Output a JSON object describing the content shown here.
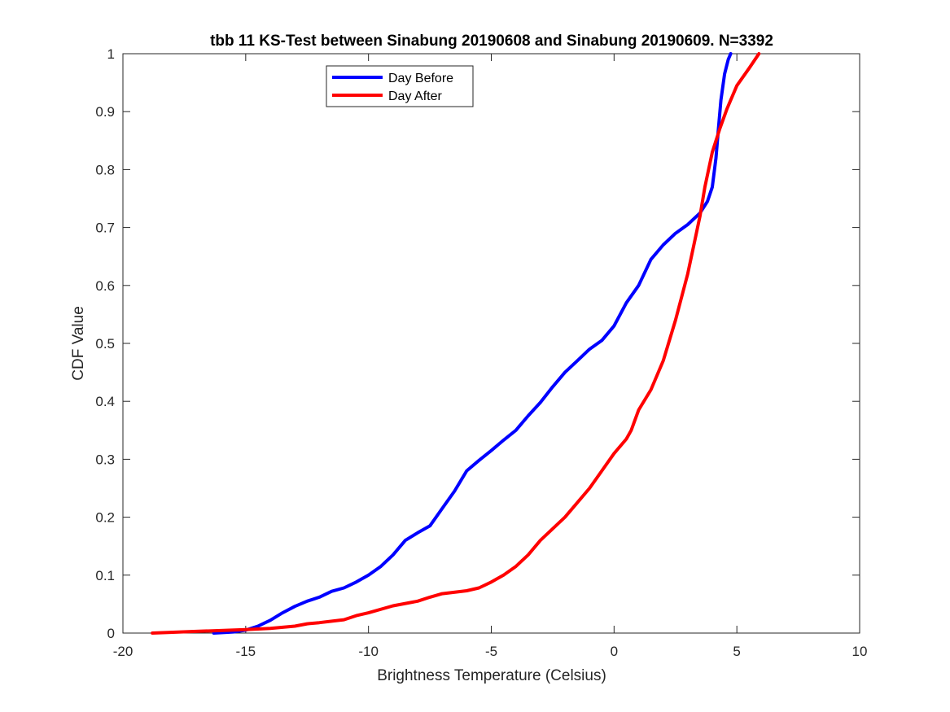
{
  "chart_data": {
    "type": "line",
    "title": "tbb 11 KS-Test between Sinabung 20190608 and Sinabung 20190609. N=3392",
    "xlabel": "Brightness Temperature (Celsius)",
    "ylabel": "CDF Value",
    "xlim": [
      -20,
      10
    ],
    "ylim": [
      0,
      1
    ],
    "xticks": [
      -20,
      -15,
      -10,
      -5,
      0,
      5,
      10
    ],
    "xtick_labels": [
      "-20",
      "-15",
      "-10",
      "-5",
      "0",
      "5",
      "10"
    ],
    "yticks": [
      0,
      0.1,
      0.2,
      0.3,
      0.4,
      0.5,
      0.6,
      0.7,
      0.8,
      0.9,
      1
    ],
    "ytick_labels": [
      "0",
      "0.1",
      "0.2",
      "0.3",
      "0.4",
      "0.5",
      "0.6",
      "0.7",
      "0.8",
      "0.9",
      "1"
    ],
    "grid": false,
    "legend_position": "top-left",
    "series": [
      {
        "name": "Day Before",
        "color": "#0000ff",
        "points": [
          [
            -16.3,
            0.0
          ],
          [
            -15.5,
            0.002
          ],
          [
            -15.0,
            0.005
          ],
          [
            -14.5,
            0.012
          ],
          [
            -14.0,
            0.022
          ],
          [
            -13.5,
            0.035
          ],
          [
            -13.0,
            0.046
          ],
          [
            -12.5,
            0.055
          ],
          [
            -12.0,
            0.062
          ],
          [
            -11.5,
            0.072
          ],
          [
            -11.0,
            0.078
          ],
          [
            -10.5,
            0.088
          ],
          [
            -10.0,
            0.1
          ],
          [
            -9.5,
            0.115
          ],
          [
            -9.0,
            0.135
          ],
          [
            -8.5,
            0.16
          ],
          [
            -8.0,
            0.173
          ],
          [
            -7.5,
            0.185
          ],
          [
            -7.0,
            0.215
          ],
          [
            -6.5,
            0.245
          ],
          [
            -6.0,
            0.28
          ],
          [
            -5.5,
            0.298
          ],
          [
            -5.0,
            0.315
          ],
          [
            -4.5,
            0.333
          ],
          [
            -4.0,
            0.35
          ],
          [
            -3.5,
            0.375
          ],
          [
            -3.0,
            0.398
          ],
          [
            -2.5,
            0.425
          ],
          [
            -2.0,
            0.45
          ],
          [
            -1.5,
            0.47
          ],
          [
            -1.0,
            0.49
          ],
          [
            -0.5,
            0.505
          ],
          [
            0.0,
            0.53
          ],
          [
            0.5,
            0.57
          ],
          [
            1.0,
            0.6
          ],
          [
            1.5,
            0.645
          ],
          [
            2.0,
            0.67
          ],
          [
            2.5,
            0.69
          ],
          [
            3.0,
            0.705
          ],
          [
            3.5,
            0.725
          ],
          [
            3.8,
            0.745
          ],
          [
            4.0,
            0.77
          ],
          [
            4.15,
            0.82
          ],
          [
            4.25,
            0.87
          ],
          [
            4.35,
            0.92
          ],
          [
            4.5,
            0.965
          ],
          [
            4.65,
            0.99
          ],
          [
            4.75,
            1.0
          ]
        ]
      },
      {
        "name": "Day After",
        "color": "#ff0000",
        "points": [
          [
            -18.8,
            0.0
          ],
          [
            -17.0,
            0.003
          ],
          [
            -15.0,
            0.006
          ],
          [
            -14.0,
            0.008
          ],
          [
            -13.0,
            0.012
          ],
          [
            -12.5,
            0.016
          ],
          [
            -12.0,
            0.018
          ],
          [
            -11.0,
            0.023
          ],
          [
            -10.5,
            0.03
          ],
          [
            -10.0,
            0.035
          ],
          [
            -9.0,
            0.047
          ],
          [
            -8.0,
            0.055
          ],
          [
            -7.5,
            0.062
          ],
          [
            -7.0,
            0.068
          ],
          [
            -6.0,
            0.073
          ],
          [
            -5.5,
            0.078
          ],
          [
            -5.0,
            0.088
          ],
          [
            -4.5,
            0.1
          ],
          [
            -4.0,
            0.115
          ],
          [
            -3.5,
            0.135
          ],
          [
            -3.0,
            0.16
          ],
          [
            -2.5,
            0.18
          ],
          [
            -2.0,
            0.2
          ],
          [
            -1.5,
            0.225
          ],
          [
            -1.0,
            0.25
          ],
          [
            -0.5,
            0.28
          ],
          [
            0.0,
            0.31
          ],
          [
            0.5,
            0.335
          ],
          [
            0.7,
            0.35
          ],
          [
            1.0,
            0.385
          ],
          [
            1.5,
            0.42
          ],
          [
            2.0,
            0.47
          ],
          [
            2.5,
            0.54
          ],
          [
            3.0,
            0.62
          ],
          [
            3.3,
            0.68
          ],
          [
            3.5,
            0.72
          ],
          [
            3.7,
            0.77
          ],
          [
            4.0,
            0.83
          ],
          [
            4.3,
            0.87
          ],
          [
            4.6,
            0.905
          ],
          [
            5.0,
            0.945
          ],
          [
            5.5,
            0.975
          ],
          [
            5.9,
            1.0
          ]
        ]
      }
    ]
  }
}
